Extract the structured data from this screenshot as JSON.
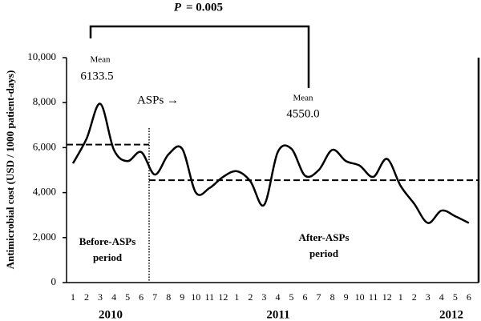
{
  "chart_data": {
    "type": "line",
    "y_label": "Antimicrobial cost (USD / 1000 patient-days)",
    "categories": [
      "1",
      "2",
      "3",
      "4",
      "5",
      "6",
      "7",
      "8",
      "9",
      "10",
      "11",
      "12",
      "1",
      "2",
      "3",
      "4",
      "5",
      "6",
      "7",
      "8",
      "9",
      "10",
      "11",
      "12",
      "1",
      "2",
      "3",
      "4",
      "5",
      "6"
    ],
    "groups": [
      "2010",
      "2011",
      "2012"
    ],
    "values": [
      5300,
      6400,
      7950,
      5900,
      5400,
      5800,
      4800,
      5700,
      5950,
      4000,
      4200,
      4700,
      4950,
      4500,
      3450,
      5800,
      5950,
      4750,
      5000,
      5900,
      5400,
      5200,
      4700,
      5500,
      4300,
      3500,
      2650,
      3200,
      2950,
      2650
    ],
    "color": "#000000",
    "ylim": [
      0,
      10000
    ],
    "yticks": [
      0,
      {
        "value": 2000,
        "label": "2,000"
      },
      {
        "value": 4000,
        "label": "4,000"
      },
      {
        "value": 6000,
        "label": "6,000"
      },
      {
        "value": 8000,
        "label": "8,000"
      },
      {
        "value": 10000,
        "label": "10,000"
      }
    ],
    "significance": {
      "symbol": "P",
      "text": "= 0.005"
    },
    "intervention_label": "ASPs →",
    "mean_caption": "Mean",
    "periods": [
      {
        "label": [
          "Before-ASPs",
          "period"
        ],
        "mean": 6133.5,
        "mean_label": "6133.5"
      },
      {
        "label": [
          "After-ASPs",
          "period"
        ],
        "mean": 4550,
        "mean_label": "4550.0"
      }
    ]
  }
}
